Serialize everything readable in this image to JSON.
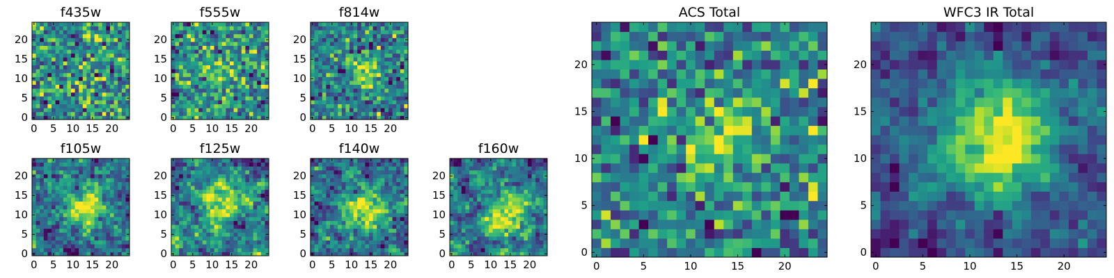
{
  "chart_data": [
    {
      "type": "heatmap",
      "title": "f435w",
      "xlabel": "",
      "ylabel": "",
      "grid": false,
      "nx": 25,
      "ny": 25,
      "xlim": [
        -0.5,
        24.5
      ],
      "ylim": [
        -0.5,
        24.5
      ],
      "xticks": [
        "0",
        "5",
        "10",
        "15",
        "20"
      ],
      "yticks": [
        "0",
        "5",
        "10",
        "15",
        "20"
      ],
      "colormap": "viridis",
      "center": [
        12,
        12
      ],
      "signal": 0.0,
      "sigma": 4,
      "noise": 0.55,
      "smooth": 0,
      "seed": 11
    },
    {
      "type": "heatmap",
      "title": "f555w",
      "xlabel": "",
      "ylabel": "",
      "grid": false,
      "nx": 25,
      "ny": 25,
      "xlim": [
        -0.5,
        24.5
      ],
      "ylim": [
        -0.5,
        24.5
      ],
      "xticks": [
        "0",
        "5",
        "10",
        "15",
        "20"
      ],
      "yticks": [
        "0",
        "5",
        "10",
        "15",
        "20"
      ],
      "colormap": "viridis",
      "center": [
        12,
        12
      ],
      "signal": 0.15,
      "sigma": 4,
      "noise": 0.5,
      "smooth": 0,
      "seed": 23
    },
    {
      "type": "heatmap",
      "title": "f814w",
      "xlabel": "",
      "ylabel": "",
      "grid": false,
      "nx": 25,
      "ny": 25,
      "xlim": [
        -0.5,
        24.5
      ],
      "ylim": [
        -0.5,
        24.5
      ],
      "xticks": [
        "0",
        "5",
        "10",
        "15",
        "20"
      ],
      "yticks": [
        "0",
        "5",
        "10",
        "15",
        "20"
      ],
      "colormap": "viridis",
      "center": [
        14,
        12
      ],
      "signal": 0.55,
      "sigma": 2.5,
      "noise": 0.45,
      "smooth": 0,
      "seed": 37
    },
    {
      "type": "heatmap",
      "title": "f105w",
      "xlabel": "",
      "ylabel": "",
      "grid": false,
      "nx": 25,
      "ny": 25,
      "xlim": [
        -0.5,
        24.5
      ],
      "ylim": [
        -0.5,
        24.5
      ],
      "xticks": [
        "0",
        "5",
        "10",
        "15",
        "20"
      ],
      "yticks": [
        "0",
        "5",
        "10",
        "15",
        "20"
      ],
      "colormap": "viridis",
      "center": [
        13,
        12
      ],
      "signal": 0.45,
      "sigma": 4,
      "noise": 0.5,
      "smooth": 1,
      "seed": 41
    },
    {
      "type": "heatmap",
      "title": "f125w",
      "xlabel": "",
      "ylabel": "",
      "grid": false,
      "nx": 25,
      "ny": 25,
      "xlim": [
        -0.5,
        24.5
      ],
      "ylim": [
        -0.5,
        24.5
      ],
      "xticks": [
        "0",
        "5",
        "10",
        "15",
        "20"
      ],
      "yticks": [
        "0",
        "5",
        "10",
        "15",
        "20"
      ],
      "colormap": "viridis",
      "center": [
        13,
        12
      ],
      "signal": 0.4,
      "sigma": 4,
      "noise": 0.5,
      "smooth": 1,
      "seed": 53
    },
    {
      "type": "heatmap",
      "title": "f140w",
      "xlabel": "",
      "ylabel": "",
      "grid": false,
      "nx": 25,
      "ny": 25,
      "xlim": [
        -0.5,
        24.5
      ],
      "ylim": [
        -0.5,
        24.5
      ],
      "xticks": [
        "0",
        "5",
        "10",
        "15",
        "20"
      ],
      "yticks": [
        "0",
        "5",
        "10",
        "15",
        "20"
      ],
      "colormap": "viridis",
      "center": [
        13,
        11
      ],
      "signal": 0.45,
      "sigma": 4,
      "noise": 0.5,
      "smooth": 1,
      "seed": 67
    },
    {
      "type": "heatmap",
      "title": "f160w",
      "xlabel": "",
      "ylabel": "",
      "grid": false,
      "nx": 25,
      "ny": 25,
      "xlim": [
        -0.5,
        24.5
      ],
      "ylim": [
        -0.5,
        24.5
      ],
      "xticks": [
        "0",
        "5",
        "10",
        "15",
        "20"
      ],
      "yticks": [
        "0",
        "5",
        "10",
        "15",
        "20"
      ],
      "colormap": "viridis",
      "center": [
        14,
        10
      ],
      "signal": 0.5,
      "sigma": 4,
      "noise": 0.5,
      "smooth": 1,
      "seed": 79
    },
    {
      "type": "heatmap",
      "title": "ACS Total",
      "xlabel": "",
      "ylabel": "",
      "grid": false,
      "nx": 25,
      "ny": 25,
      "xlim": [
        -0.5,
        24.5
      ],
      "ylim": [
        -0.5,
        24.5
      ],
      "xticks": [
        "0",
        "5",
        "10",
        "15",
        "20"
      ],
      "yticks": [
        "0",
        "5",
        "10",
        "15",
        "20"
      ],
      "colormap": "viridis",
      "center": [
        13,
        12
      ],
      "signal": 0.45,
      "sigma": 3,
      "noise": 0.4,
      "smooth": 0,
      "seed": 97
    },
    {
      "type": "heatmap",
      "title": "WFC3 IR Total",
      "xlabel": "",
      "ylabel": "",
      "grid": false,
      "nx": 25,
      "ny": 25,
      "xlim": [
        -0.5,
        24.5
      ],
      "ylim": [
        -0.5,
        24.5
      ],
      "xticks": [
        "0",
        "5",
        "10",
        "15",
        "20"
      ],
      "yticks": [
        "0",
        "5",
        "10",
        "15",
        "20"
      ],
      "colormap": "viridis",
      "center": [
        13,
        12
      ],
      "signal": 0.6,
      "sigma": 4.5,
      "noise": 0.35,
      "smooth": 1,
      "seed": 113
    }
  ]
}
